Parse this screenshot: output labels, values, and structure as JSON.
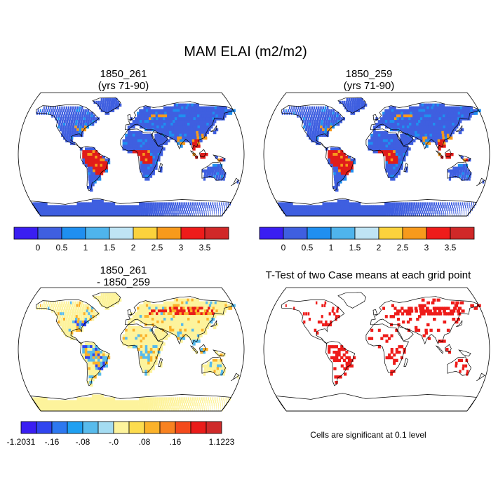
{
  "figure": {
    "title": "MAM ELAI (m2/m2)",
    "panels": [
      {
        "title_line1": "1850_261",
        "title_line2": "(yrs 71-90)"
      },
      {
        "title_line1": "1850_259",
        "title_line2": "(yrs 71-90)"
      },
      {
        "title_line1": "1850_261",
        "title_line2": "- 1850_259"
      },
      {
        "title_line1": "T-Test of two Case means at each grid point",
        "title_line2": ""
      }
    ],
    "note": "Cells are significant at 0.1 level"
  },
  "colorbar_top": {
    "colors": [
      "#3a1ef2",
      "#3f5fe0",
      "#1f8ff0",
      "#4fb4ec",
      "#bfe4f4",
      "#fbd23c",
      "#f79a1c",
      "#ee1c1a",
      "#d02828"
    ],
    "labels": [
      "0",
      "0.5",
      "1",
      "1.5",
      "2",
      "2.5",
      "3",
      "3.5"
    ]
  },
  "colorbar_diff": {
    "colors": [
      "#3a1ef2",
      "#3045f0",
      "#2d78f0",
      "#1fa0f2",
      "#58bbec",
      "#a4dcf2",
      "#fdf39c",
      "#fddc4e",
      "#fbb22a",
      "#f88220",
      "#f44a1c",
      "#ea1c1a",
      "#cf2a2a"
    ],
    "labels": [
      "-1.2031",
      "-.16",
      "-.08",
      "-.0",
      ".08",
      ".16",
      "1.1223"
    ]
  },
  "map_palettes": {
    "abs": {
      "ocean": "#ffffff",
      "land": "#3f5fe0",
      "forest": "#e01c1a",
      "mid": "#1f8ff0",
      "warm": "#f79a1c",
      "light": "#bfe4f4"
    },
    "diff": {
      "ocean": "#ffffff",
      "land": "#fdf39c",
      "pos": "#fbb22a",
      "neg": "#58bbec",
      "posStrong": "#ea1c1a",
      "negStrong": "#3045f0"
    },
    "sig": {
      "ocean": "#ffffff",
      "land": "#ffffff",
      "mark": "#ee1c1a"
    }
  }
}
